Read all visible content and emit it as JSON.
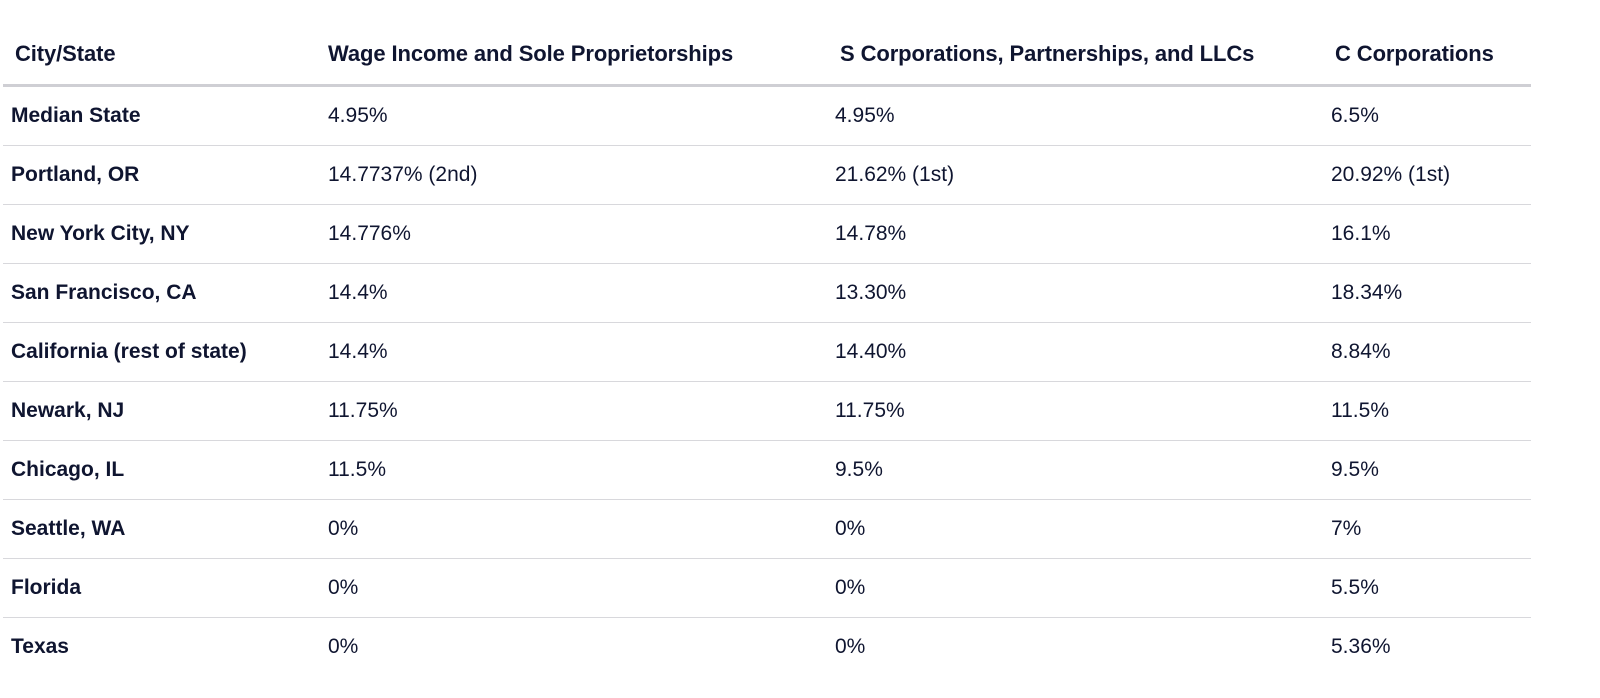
{
  "table": {
    "headers": [
      "City/State",
      "Wage Income and Sole Proprietorships",
      "S Corporations, Partnerships, and LLCs",
      "C Corporations"
    ],
    "rows": [
      [
        "Median State",
        "4.95%",
        "4.95%",
        "6.5%"
      ],
      [
        "Portland, OR",
        "14.7737% (2nd)",
        "21.62% (1st)",
        "20.92% (1st)"
      ],
      [
        "New York City, NY",
        "14.776%",
        "14.78%",
        "16.1%"
      ],
      [
        "San Francisco, CA",
        "14.4%",
        "13.30%",
        "18.34%"
      ],
      [
        "California (rest of state)",
        "14.4%",
        "14.40%",
        "8.84%"
      ],
      [
        "Newark, NJ",
        "11.75%",
        "11.75%",
        "11.5%"
      ],
      [
        "Chicago, IL",
        "11.5%",
        "9.5%",
        "9.5%"
      ],
      [
        "Seattle, WA",
        "0%",
        "0%",
        "7%"
      ],
      [
        "Florida",
        "0%",
        "0%",
        "5.5%"
      ],
      [
        "Texas",
        "0%",
        "0%",
        "5.36%"
      ]
    ]
  }
}
